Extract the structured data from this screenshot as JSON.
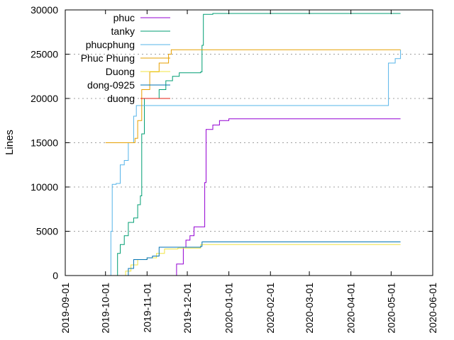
{
  "chart_data": {
    "type": "line",
    "title": "",
    "xlabel": "",
    "ylabel": "Lines",
    "x_axis_type": "date",
    "xlim": [
      "2019-09-01",
      "2020-06-01"
    ],
    "ylim": [
      0,
      30000
    ],
    "x_ticks": [
      "2019-09-01",
      "2019-10-01",
      "2019-11-01",
      "2019-12-01",
      "2020-01-01",
      "2020-02-01",
      "2020-03-01",
      "2020-04-01",
      "2020-05-01",
      "2020-06-01"
    ],
    "y_ticks": [
      0,
      5000,
      10000,
      15000,
      20000,
      25000,
      30000
    ],
    "grid": "horizontal dotted",
    "legend_position": "top-left",
    "series": [
      {
        "name": "phuc",
        "color": "#9400d3",
        "points": [
          [
            "2019-11-17",
            0
          ],
          [
            "2019-11-23",
            1300
          ],
          [
            "2019-11-28",
            1400
          ],
          [
            "2019-11-28",
            3200
          ],
          [
            "2019-11-30",
            4000
          ],
          [
            "2019-12-03",
            4500
          ],
          [
            "2019-12-06",
            5500
          ],
          [
            "2019-12-11",
            5500
          ],
          [
            "2019-12-14",
            10500
          ],
          [
            "2019-12-15",
            16500
          ],
          [
            "2019-12-20",
            17000
          ],
          [
            "2019-12-25",
            17500
          ],
          [
            "2020-01-01",
            17700
          ],
          [
            "2020-05-08",
            17700
          ]
        ]
      },
      {
        "name": "tanky",
        "color": "#009e73",
        "points": [
          [
            "2019-10-09",
            0
          ],
          [
            "2019-10-10",
            2500
          ],
          [
            "2019-10-12",
            3500
          ],
          [
            "2019-10-15",
            4500
          ],
          [
            "2019-10-18",
            6000
          ],
          [
            "2019-10-22",
            6500
          ],
          [
            "2019-10-25",
            8000
          ],
          [
            "2019-10-27",
            9000
          ],
          [
            "2019-10-28",
            16000
          ],
          [
            "2019-10-30",
            20000
          ],
          [
            "2019-11-10",
            21000
          ],
          [
            "2019-11-15",
            22000
          ],
          [
            "2019-11-20",
            22500
          ],
          [
            "2019-11-25",
            22900
          ],
          [
            "2019-12-11",
            23000
          ],
          [
            "2019-12-12",
            26000
          ],
          [
            "2019-12-13",
            29500
          ],
          [
            "2019-12-20",
            29600
          ],
          [
            "2020-05-08",
            29600
          ]
        ]
      },
      {
        "name": "phucphung",
        "color": "#56b4e9",
        "points": [
          [
            "2019-10-04",
            0
          ],
          [
            "2019-10-05",
            5000
          ],
          [
            "2019-10-06",
            10300
          ],
          [
            "2019-10-09",
            10400
          ],
          [
            "2019-10-12",
            12500
          ],
          [
            "2019-10-15",
            13000
          ],
          [
            "2019-10-18",
            15000
          ],
          [
            "2019-10-22",
            18000
          ],
          [
            "2019-10-24",
            19200
          ],
          [
            "2020-04-25",
            19200
          ],
          [
            "2020-04-29",
            24000
          ],
          [
            "2020-05-04",
            24500
          ],
          [
            "2020-05-08",
            25500
          ]
        ]
      },
      {
        "name": "Phuc Phung",
        "color": "#e69f00",
        "points": [
          [
            "2019-10-01",
            15000
          ],
          [
            "2019-10-20",
            15000
          ],
          [
            "2019-10-23",
            15500
          ],
          [
            "2019-10-25",
            17500
          ],
          [
            "2019-10-28",
            21000
          ],
          [
            "2019-11-03",
            23000
          ],
          [
            "2019-11-10",
            24000
          ],
          [
            "2019-11-17",
            25000
          ],
          [
            "2019-11-19",
            25500
          ],
          [
            "2020-05-08",
            25500
          ]
        ]
      },
      {
        "name": "Duong",
        "color": "#f0e442",
        "points": [
          [
            "2019-10-12",
            0
          ],
          [
            "2019-10-16",
            500
          ],
          [
            "2019-10-20",
            1200
          ],
          [
            "2019-10-25",
            1800
          ],
          [
            "2019-11-01",
            2000
          ],
          [
            "2019-11-08",
            2500
          ],
          [
            "2019-11-14",
            3000
          ],
          [
            "2019-11-24",
            3100
          ],
          [
            "2019-12-11",
            3500
          ],
          [
            "2020-05-08",
            3500
          ]
        ]
      },
      {
        "name": "dong-0925",
        "color": "#0072b2",
        "points": [
          [
            "2019-10-15",
            0
          ],
          [
            "2019-10-18",
            800
          ],
          [
            "2019-10-22",
            1800
          ],
          [
            "2019-11-01",
            2000
          ],
          [
            "2019-11-05",
            2200
          ],
          [
            "2019-11-10",
            3200
          ],
          [
            "2019-12-11",
            3300
          ],
          [
            "2019-12-12",
            3800
          ],
          [
            "2020-05-08",
            3800
          ]
        ]
      },
      {
        "name": "duong",
        "color": "#e51e10",
        "points": []
      }
    ]
  }
}
